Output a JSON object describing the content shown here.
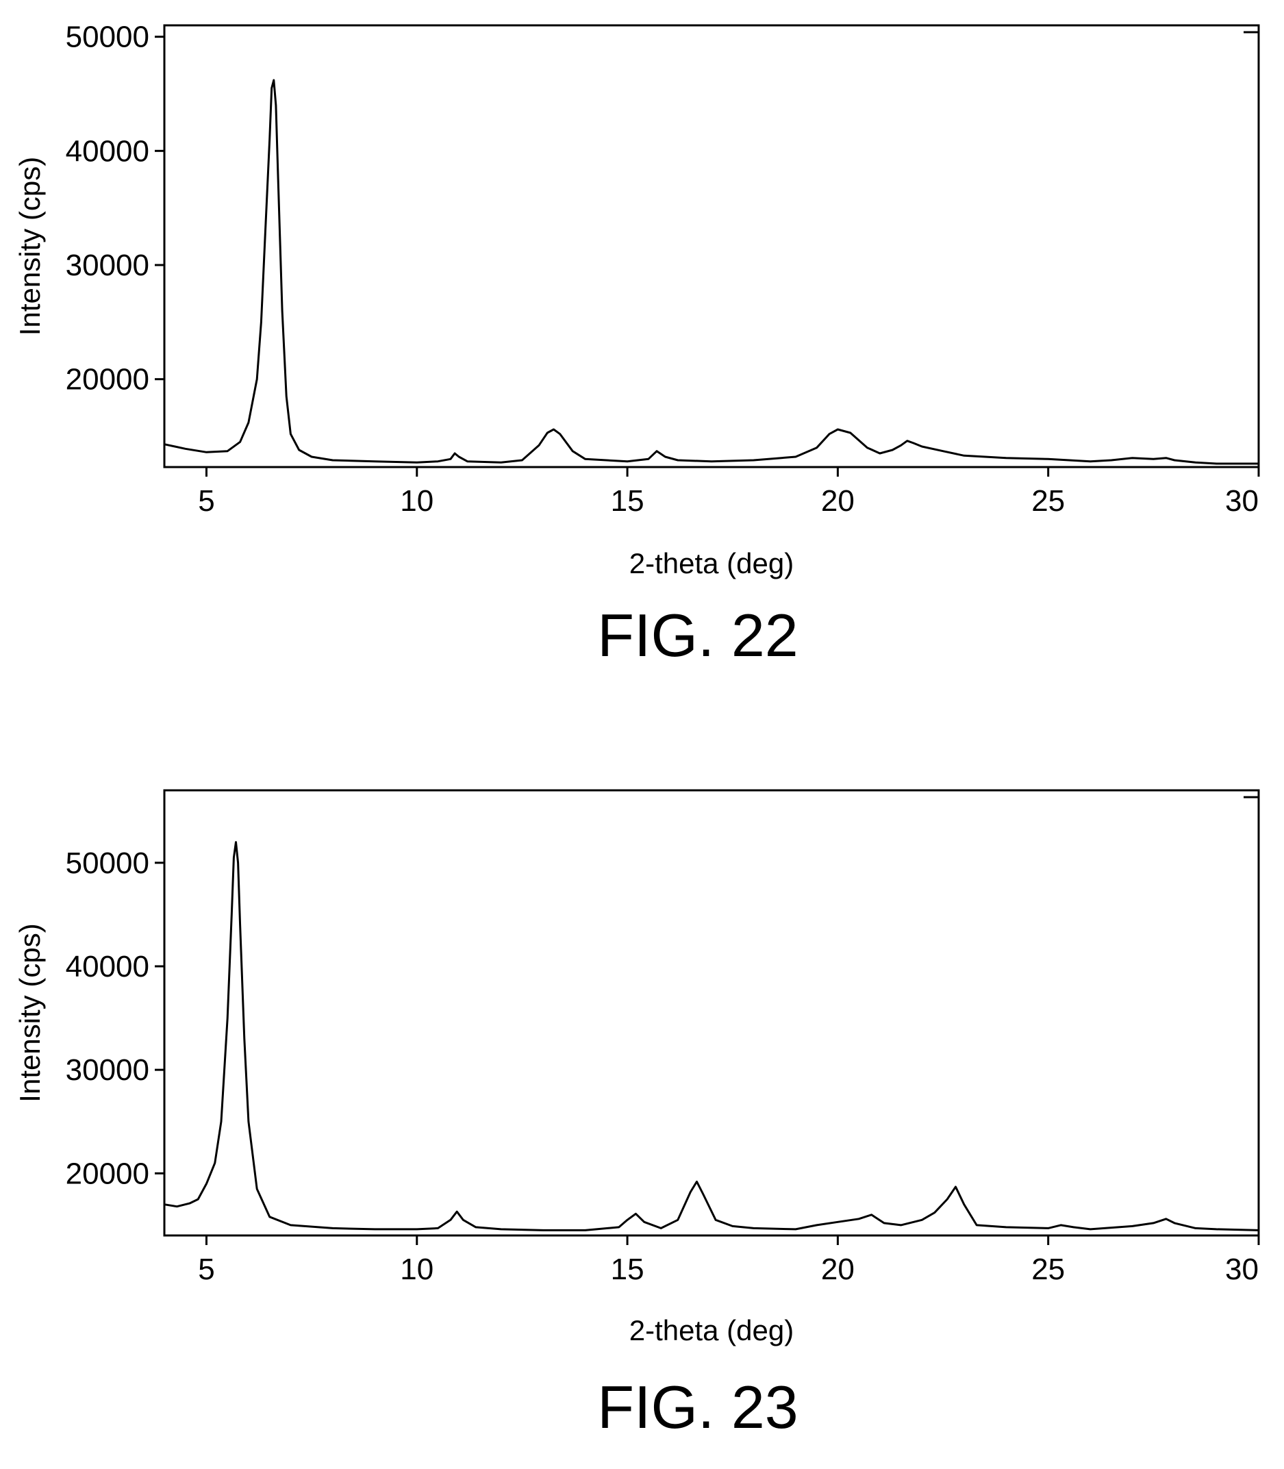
{
  "chart_data": [
    {
      "type": "line",
      "figure_label": "FIG. 22",
      "xlabel": "2-theta (deg)",
      "ylabel": "Intensity (cps)",
      "xlim": [
        4,
        30
      ],
      "ylim": [
        12300,
        51000
      ],
      "xticks": [
        5,
        10,
        15,
        20,
        25,
        30
      ],
      "yticks": [
        20000,
        30000,
        40000,
        50000
      ],
      "grid": false,
      "series": [
        {
          "x": [
            4.0,
            4.5,
            5.0,
            5.5,
            5.8,
            6.0,
            6.2,
            6.3,
            6.4,
            6.5,
            6.55,
            6.6,
            6.65,
            6.7,
            6.8,
            6.9,
            7.0,
            7.2,
            7.5,
            8.0,
            9.0,
            10.0,
            10.5,
            10.8,
            10.9,
            11.0,
            11.2,
            12.0,
            12.5,
            12.9,
            13.1,
            13.25,
            13.4,
            13.7,
            14.0,
            15.0,
            15.5,
            15.7,
            15.9,
            16.2,
            17.0,
            18.0,
            19.0,
            19.5,
            19.8,
            20.0,
            20.3,
            20.7,
            21.0,
            21.3,
            21.5,
            21.65,
            21.8,
            22.0,
            22.5,
            23.0,
            24.0,
            25.0,
            26.0,
            26.5,
            27.0,
            27.5,
            27.8,
            28.0,
            28.5,
            29.0,
            30.0
          ],
          "y": [
            14300,
            13900,
            13600,
            13700,
            14500,
            16200,
            20000,
            25000,
            33000,
            41000,
            45500,
            46200,
            44000,
            38000,
            26000,
            18500,
            15200,
            13800,
            13200,
            12900,
            12800,
            12700,
            12800,
            13000,
            13500,
            13200,
            12800,
            12700,
            12900,
            14200,
            15300,
            15600,
            15200,
            13700,
            13000,
            12800,
            13000,
            13700,
            13200,
            12900,
            12800,
            12900,
            13200,
            14000,
            15200,
            15600,
            15300,
            14000,
            13500,
            13800,
            14200,
            14600,
            14400,
            14100,
            13700,
            13300,
            13100,
            13000,
            12800,
            12900,
            13100,
            13000,
            13100,
            12900,
            12700,
            12600,
            12600
          ]
        }
      ]
    },
    {
      "type": "line",
      "figure_label": "FIG. 23",
      "xlabel": "2-theta (deg)",
      "ylabel": "Intensity (cps)",
      "xlim": [
        4,
        30
      ],
      "ylim": [
        14000,
        57000
      ],
      "xticks": [
        5,
        10,
        15,
        20,
        25,
        30
      ],
      "yticks": [
        20000,
        30000,
        40000,
        50000
      ],
      "grid": false,
      "series": [
        {
          "x": [
            4.0,
            4.3,
            4.6,
            4.8,
            5.0,
            5.2,
            5.35,
            5.5,
            5.6,
            5.65,
            5.7,
            5.75,
            5.8,
            5.9,
            6.0,
            6.2,
            6.5,
            7.0,
            8.0,
            9.0,
            10.0,
            10.5,
            10.8,
            10.95,
            11.1,
            11.4,
            12.0,
            13.0,
            14.0,
            14.8,
            15.0,
            15.2,
            15.4,
            15.8,
            16.2,
            16.5,
            16.65,
            16.8,
            17.1,
            17.5,
            18.0,
            19.0,
            19.5,
            20.0,
            20.5,
            20.8,
            21.1,
            21.5,
            22.0,
            22.3,
            22.6,
            22.8,
            23.0,
            23.3,
            24.0,
            25.0,
            25.3,
            25.6,
            26.0,
            27.0,
            27.5,
            27.8,
            28.0,
            28.5,
            29.0,
            30.0
          ],
          "y": [
            17000,
            16800,
            17100,
            17500,
            19000,
            21000,
            25000,
            35000,
            45000,
            50500,
            52000,
            50000,
            44000,
            33000,
            25000,
            18500,
            15800,
            15000,
            14700,
            14600,
            14600,
            14700,
            15500,
            16300,
            15500,
            14800,
            14600,
            14500,
            14500,
            14800,
            15500,
            16100,
            15300,
            14700,
            15500,
            18200,
            19200,
            18000,
            15500,
            14900,
            14700,
            14600,
            15000,
            15300,
            15600,
            16000,
            15200,
            15000,
            15500,
            16200,
            17500,
            18700,
            17000,
            15000,
            14800,
            14700,
            15000,
            14800,
            14600,
            14900,
            15200,
            15600,
            15200,
            14700,
            14600,
            14500
          ]
        }
      ]
    }
  ]
}
